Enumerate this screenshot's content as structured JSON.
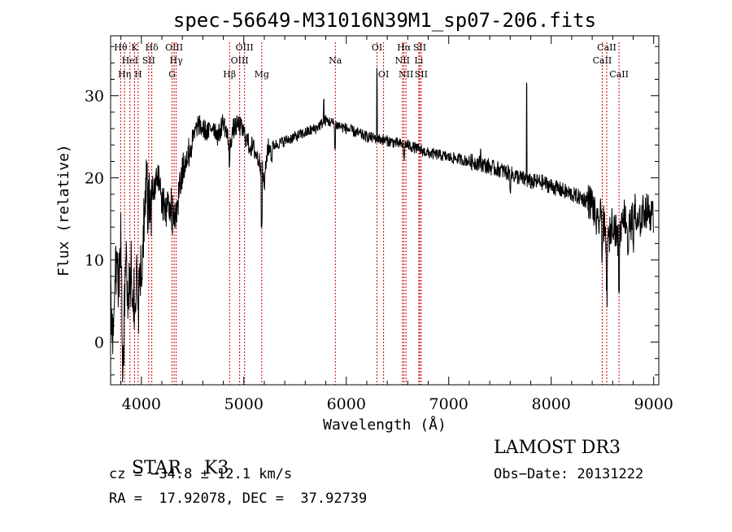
{
  "chart_data": {
    "type": "line",
    "title": "spec-56649-M31016N39M1_sp07-206.fits",
    "xlabel": "Wavelength (Å)",
    "ylabel": "Flux (relative)",
    "xlim": [
      3700,
      9050
    ],
    "ylim": [
      -5.2,
      37.3
    ],
    "xticks": [
      4000,
      5000,
      6000,
      7000,
      8000,
      9000
    ],
    "yticks": [
      0,
      10,
      20,
      30
    ],
    "grid": false,
    "series_color": "#000000",
    "line_color": "#cc0000",
    "spectrum_anchors": [
      [
        3700,
        5
      ],
      [
        3720,
        2
      ],
      [
        3750,
        10
      ],
      [
        3780,
        8
      ],
      [
        3800,
        12
      ],
      [
        3820,
        -2
      ],
      [
        3850,
        9
      ],
      [
        3880,
        6
      ],
      [
        3900,
        10
      ],
      [
        3930,
        5
      ],
      [
        3960,
        9
      ],
      [
        3990,
        7
      ],
      [
        4020,
        14
      ],
      [
        4050,
        18
      ],
      [
        4080,
        17
      ],
      [
        4100,
        20
      ],
      [
        4130,
        19
      ],
      [
        4150,
        21
      ],
      [
        4200,
        17
      ],
      [
        4250,
        16
      ],
      [
        4300,
        17.5
      ],
      [
        4330,
        15
      ],
      [
        4380,
        19
      ],
      [
        4420,
        22
      ],
      [
        4460,
        23
      ],
      [
        4500,
        24.5
      ],
      [
        4550,
        26.5
      ],
      [
        4600,
        26
      ],
      [
        4650,
        25.5
      ],
      [
        4700,
        26.5
      ],
      [
        4750,
        25
      ],
      [
        4800,
        27
      ],
      [
        4860,
        24
      ],
      [
        4900,
        26
      ],
      [
        4950,
        26.5
      ],
      [
        5000,
        25.5
      ],
      [
        5050,
        24
      ],
      [
        5100,
        23.5
      ],
      [
        5150,
        22
      ],
      [
        5180,
        21
      ],
      [
        5200,
        19
      ],
      [
        5230,
        23.5
      ],
      [
        5300,
        24
      ],
      [
        5400,
        24.5
      ],
      [
        5500,
        25
      ],
      [
        5600,
        25.5
      ],
      [
        5700,
        26
      ],
      [
        5800,
        27
      ],
      [
        5900,
        26.5
      ],
      [
        6000,
        26
      ],
      [
        6100,
        25.5
      ],
      [
        6200,
        25
      ],
      [
        6300,
        24.8
      ],
      [
        6400,
        24.5
      ],
      [
        6500,
        24.2
      ],
      [
        6560,
        24
      ],
      [
        6600,
        24
      ],
      [
        6700,
        23.5
      ],
      [
        6800,
        23
      ],
      [
        6900,
        22.8
      ],
      [
        7000,
        22.5
      ],
      [
        7100,
        22.3
      ],
      [
        7200,
        22
      ],
      [
        7300,
        21.8
      ],
      [
        7400,
        21.3
      ],
      [
        7500,
        21
      ],
      [
        7600,
        20.5
      ],
      [
        7700,
        20
      ],
      [
        7800,
        19.5
      ],
      [
        7900,
        19.5
      ],
      [
        8000,
        19
      ],
      [
        8100,
        18.5
      ],
      [
        8200,
        18
      ],
      [
        8300,
        17.5
      ],
      [
        8400,
        17
      ],
      [
        8450,
        14
      ],
      [
        8500,
        16
      ],
      [
        8540,
        11
      ],
      [
        8600,
        15
      ],
      [
        8660,
        12
      ],
      [
        8700,
        16
      ],
      [
        8750,
        14
      ],
      [
        8800,
        15
      ],
      [
        8850,
        14
      ],
      [
        8900,
        16
      ],
      [
        8950,
        16
      ],
      [
        9000,
        15
      ]
    ],
    "dips": [
      [
        3820,
        3
      ],
      [
        3934,
        4
      ],
      [
        3968,
        3
      ],
      [
        4101,
        3
      ],
      [
        4300,
        3
      ],
      [
        4861,
        3
      ],
      [
        5175,
        6
      ],
      [
        5270,
        1.5
      ],
      [
        5890,
        3
      ],
      [
        6563,
        1.5
      ],
      [
        7600,
        1.5
      ],
      [
        8498,
        4
      ],
      [
        8542,
        5
      ],
      [
        8662,
        5
      ],
      [
        8750,
        3
      ],
      [
        8800,
        2
      ]
    ],
    "spikes": [
      [
        6300,
        8
      ],
      [
        7760,
        12
      ],
      [
        5780,
        2.5
      ],
      [
        7310,
        2
      ],
      [
        8820,
        3
      ]
    ],
    "lines": [
      {
        "label": "Hθ",
        "wavelength": 3798,
        "row": 0
      },
      {
        "label": "Hη",
        "wavelength": 3836,
        "row": 2
      },
      {
        "label": "HeI",
        "wavelength": 3889,
        "row": 1
      },
      {
        "label": "K",
        "wavelength": 3934,
        "row": 0
      },
      {
        "label": "H",
        "wavelength": 3969,
        "row": 2
      },
      {
        "label": "SII",
        "wavelength": 4072,
        "row": 1
      },
      {
        "label": "Hδ",
        "wavelength": 4102,
        "row": 0
      },
      {
        "label": "G",
        "wavelength": 4300,
        "row": 2
      },
      {
        "label": "OIII",
        "wavelength": 4320,
        "row": 0
      },
      {
        "label": "Hγ",
        "wavelength": 4340,
        "row": 1
      },
      {
        "label": "Hβ",
        "wavelength": 4861,
        "row": 2
      },
      {
        "label": "OIII",
        "wavelength": 4959,
        "row": 1
      },
      {
        "label": "OIII",
        "wavelength": 5007,
        "row": 0
      },
      {
        "label": "Mg",
        "wavelength": 5175,
        "row": 2
      },
      {
        "label": "Na",
        "wavelength": 5893,
        "row": 1
      },
      {
        "label": "OI",
        "wavelength": 6300,
        "row": 0
      },
      {
        "label": "OI",
        "wavelength": 6364,
        "row": 2
      },
      {
        "label": "NII",
        "wavelength": 6548,
        "row": 1
      },
      {
        "label": "Hα",
        "wavelength": 6563,
        "row": 0
      },
      {
        "label": "NII",
        "wavelength": 6583,
        "row": 2
      },
      {
        "label": "SII",
        "wavelength": 6716,
        "row": 0
      },
      {
        "label": "Li",
        "wavelength": 6708,
        "row": 1
      },
      {
        "label": "SII",
        "wavelength": 6731,
        "row": 2
      },
      {
        "label": "CaII",
        "wavelength": 8498,
        "row": 1
      },
      {
        "label": "CaII",
        "wavelength": 8542,
        "row": 0
      },
      {
        "label": "CaII",
        "wavelength": 8662,
        "row": 2
      }
    ]
  },
  "info": {
    "class_label": "STAR",
    "subclass": "K3",
    "survey": "LAMOST DR3",
    "redshift": "cz = −34.8 ± 12.1 km/s",
    "obs_date": "Obs−Date: 20131222",
    "coords": "RA =  17.92078, DEC =  37.92739"
  }
}
